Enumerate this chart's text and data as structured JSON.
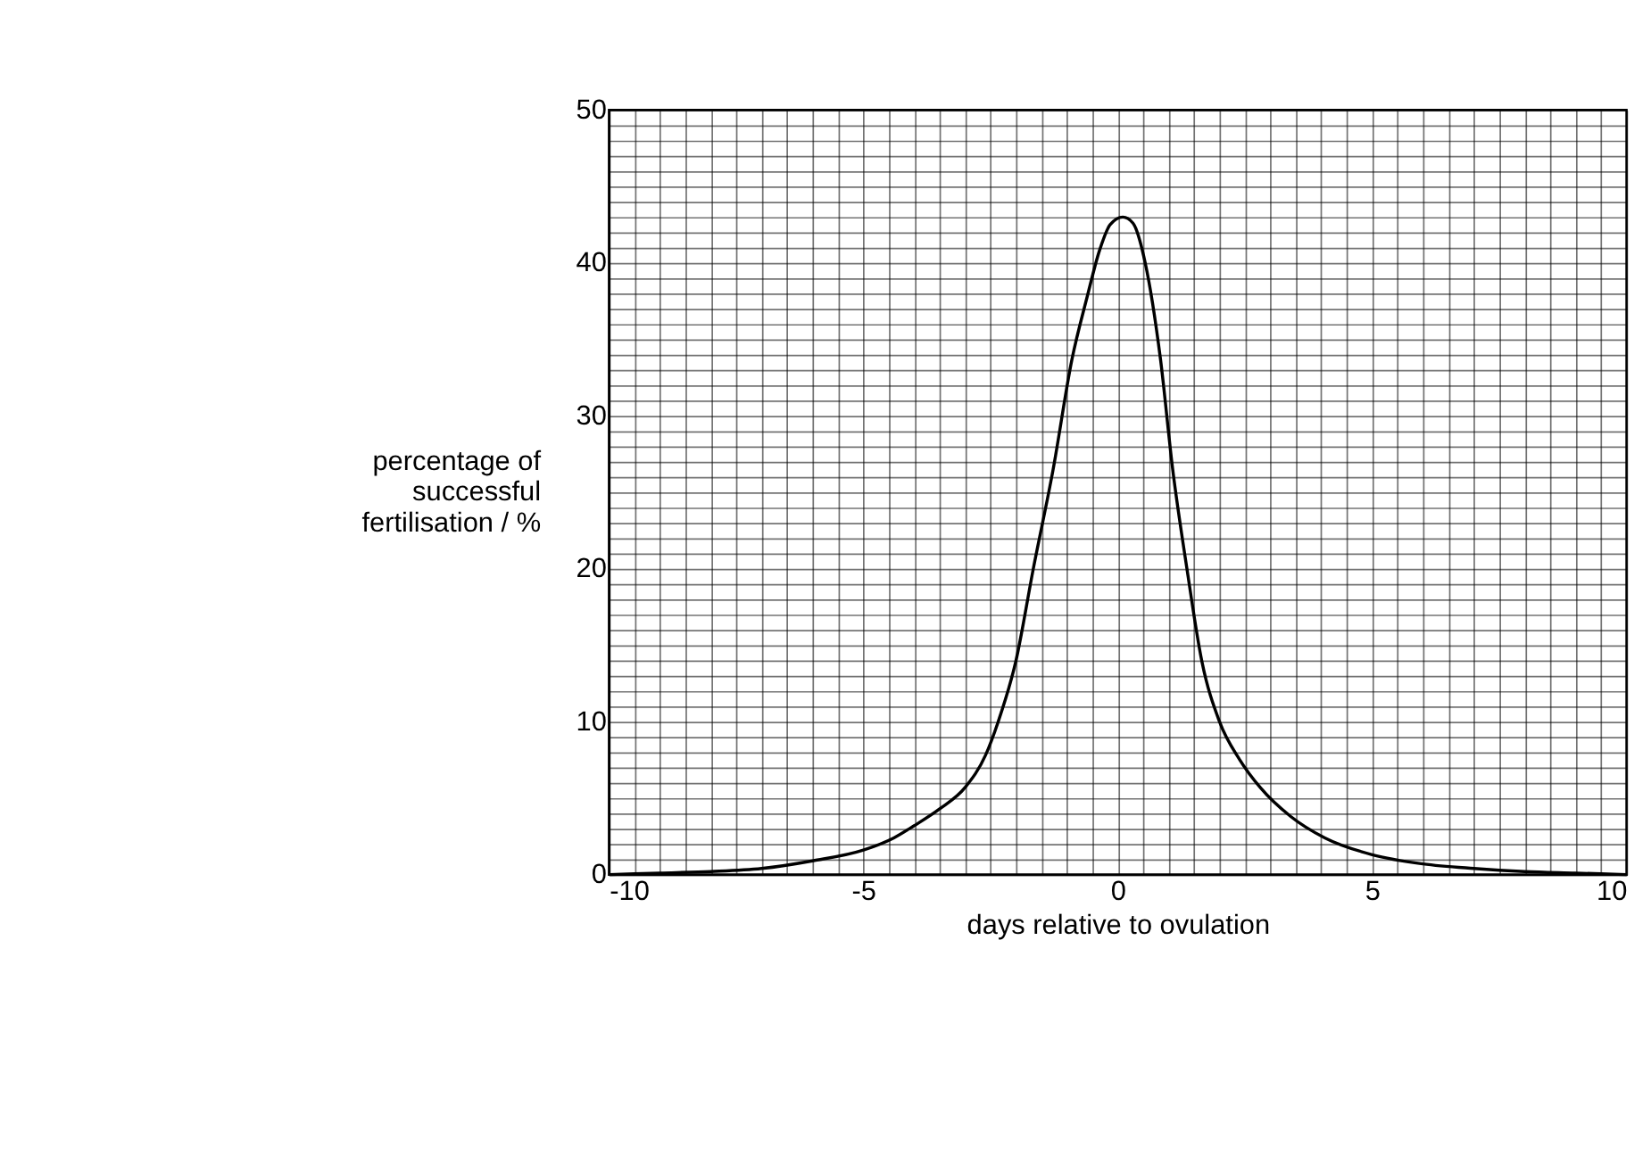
{
  "chart_data": {
    "type": "line",
    "xlabel": "days relative to ovulation",
    "ylabel": "percentage of\nsuccessful\nfertilisation / %",
    "x": [
      -10,
      -9,
      -8,
      -7,
      -6,
      -5,
      -4.4,
      -4,
      -3.5,
      -3,
      -2.6,
      -2.35,
      -2,
      -1.66,
      -1.27,
      -0.9,
      -0.6,
      -0.36,
      -0.15,
      0.1,
      0.3,
      0.54,
      0.84,
      1.08,
      1.36,
      1.65,
      2.0,
      2.4,
      2.8,
      3.4,
      4.07,
      5,
      6,
      7,
      8,
      9,
      10
    ],
    "series": [
      {
        "color": "#000000",
        "values": [
          0,
          0.1,
          0.2,
          0.4,
          0.9,
          1.6,
          2.4,
          3.2,
          4.3,
          5.7,
          7.8,
          10,
          14,
          20,
          26.5,
          33.7,
          37.8,
          40.8,
          42.5,
          43,
          42.6,
          40,
          33.7,
          26.5,
          20,
          14,
          10,
          7.5,
          5.7,
          3.8,
          2.4,
          1.3,
          0.7,
          0.4,
          0.2,
          0.1,
          0
        ]
      }
    ],
    "xlim": [
      -10,
      10
    ],
    "ylim": [
      0,
      50
    ],
    "xticks": [
      -10,
      {
        "value": -9.5,
        "label": null
      },
      {
        "value": -9,
        "label": null
      },
      {
        "value": -8.5,
        "label": null
      },
      {
        "value": -8,
        "label": null
      },
      {
        "value": -7.5,
        "label": null
      },
      {
        "value": -7,
        "label": null
      },
      {
        "value": -6.5,
        "label": null
      },
      {
        "value": -6,
        "label": null
      },
      {
        "value": -5.5,
        "label": null
      },
      -5,
      {
        "value": -4.5,
        "label": null
      },
      {
        "value": -4,
        "label": null
      },
      {
        "value": -3.5,
        "label": null
      },
      {
        "value": -3,
        "label": null
      },
      {
        "value": -2.5,
        "label": null
      },
      {
        "value": -2,
        "label": null
      },
      {
        "value": -1.5,
        "label": null
      },
      {
        "value": -1,
        "label": null
      },
      {
        "value": -0.5,
        "label": null
      },
      0,
      {
        "value": 0.5,
        "label": null
      },
      {
        "value": 1,
        "label": null
      },
      {
        "value": 1.5,
        "label": null
      },
      {
        "value": 2,
        "label": null
      },
      {
        "value": 2.5,
        "label": null
      },
      {
        "value": 3,
        "label": null
      },
      {
        "value": 3.5,
        "label": null
      },
      {
        "value": 4,
        "label": null
      },
      {
        "value": 4.5,
        "label": null
      },
      5,
      {
        "value": 5.5,
        "label": null
      },
      {
        "value": 6,
        "label": null
      },
      {
        "value": 6.5,
        "label": null
      },
      {
        "value": 7,
        "label": null
      },
      {
        "value": 7.5,
        "label": null
      },
      {
        "value": 8,
        "label": null
      },
      {
        "value": 8.5,
        "label": null
      },
      {
        "value": 9,
        "label": null
      },
      {
        "value": 9.5,
        "label": null
      },
      10
    ],
    "yticks": [
      0,
      {
        "value": 1,
        "label": null
      },
      {
        "value": 2,
        "label": null
      },
      {
        "value": 3,
        "label": null
      },
      {
        "value": 4,
        "label": null
      },
      {
        "value": 5,
        "label": null
      },
      {
        "value": 6,
        "label": null
      },
      {
        "value": 7,
        "label": null
      },
      {
        "value": 8,
        "label": null
      },
      {
        "value": 9,
        "label": null
      },
      10,
      {
        "value": 11,
        "label": null
      },
      {
        "value": 12,
        "label": null
      },
      {
        "value": 13,
        "label": null
      },
      {
        "value": 14,
        "label": null
      },
      {
        "value": 15,
        "label": null
      },
      {
        "value": 16,
        "label": null
      },
      {
        "value": 17,
        "label": null
      },
      {
        "value": 18,
        "label": null
      },
      {
        "value": 19,
        "label": null
      },
      20,
      {
        "value": 21,
        "label": null
      },
      {
        "value": 22,
        "label": null
      },
      {
        "value": 23,
        "label": null
      },
      {
        "value": 24,
        "label": null
      },
      {
        "value": 25,
        "label": null
      },
      {
        "value": 26,
        "label": null
      },
      {
        "value": 27,
        "label": null
      },
      {
        "value": 28,
        "label": null
      },
      {
        "value": 29,
        "label": null
      },
      30,
      {
        "value": 31,
        "label": null
      },
      {
        "value": 32,
        "label": null
      },
      {
        "value": 33,
        "label": null
      },
      {
        "value": 34,
        "label": null
      },
      {
        "value": 35,
        "label": null
      },
      {
        "value": 36,
        "label": null
      },
      {
        "value": 37,
        "label": null
      },
      {
        "value": 38,
        "label": null
      },
      {
        "value": 39,
        "label": null
      },
      40,
      {
        "value": 41,
        "label": null
      },
      {
        "value": 42,
        "label": null
      },
      {
        "value": 43,
        "label": null
      },
      {
        "value": 44,
        "label": null
      },
      {
        "value": 45,
        "label": null
      },
      {
        "value": 46,
        "label": null
      },
      {
        "value": 47,
        "label": null
      },
      {
        "value": 48,
        "label": null
      },
      {
        "value": 49,
        "label": null
      },
      50
    ],
    "grid": true,
    "line_style": "solid",
    "marker": "none"
  }
}
